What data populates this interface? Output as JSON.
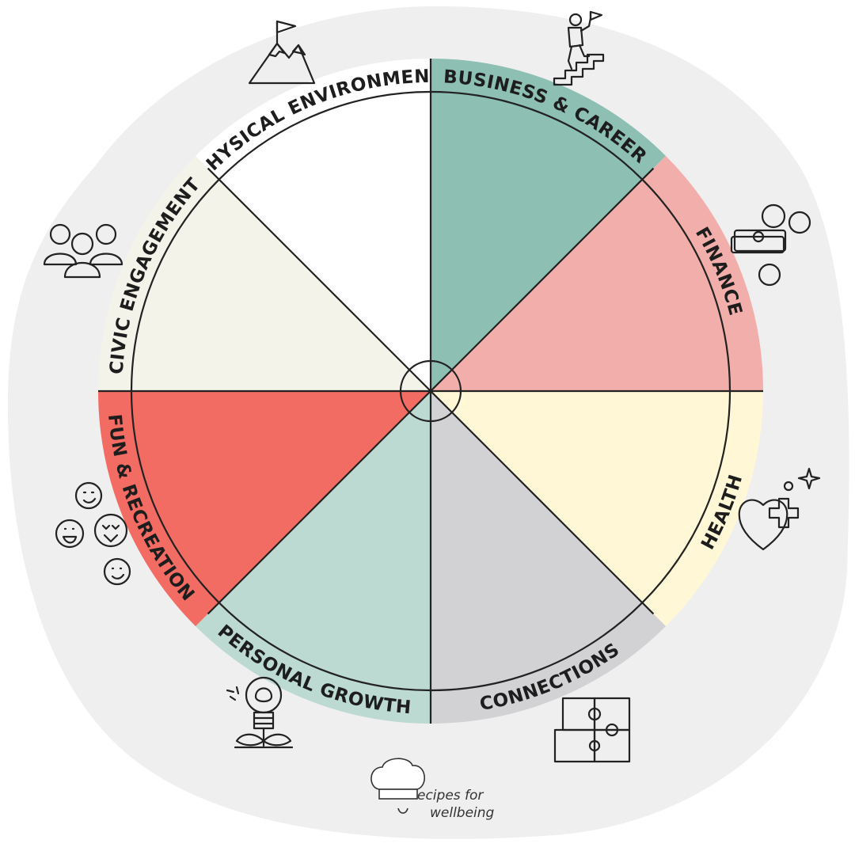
{
  "wheel": {
    "segments": [
      {
        "id": "business-career",
        "label": "BUSINESS & CAREER",
        "color": "#8dbfb3",
        "icon": "climbing-stairs-icon"
      },
      {
        "id": "finance",
        "label": "FINANCE",
        "color": "#f2aeaa",
        "icon": "money-coins-icon"
      },
      {
        "id": "health",
        "label": "HEALTH",
        "color": "#fff7d6",
        "icon": "heart-plus-icon"
      },
      {
        "id": "connections",
        "label": "CONNECTIONS",
        "color": "#d2d1d4",
        "icon": "puzzle-pieces-icon"
      },
      {
        "id": "personal-growth",
        "label": "PERSONAL GROWTH",
        "color": "#bcd9d2",
        "icon": "lightbulb-plant-icon"
      },
      {
        "id": "fun-recreation",
        "label": "FUN & RECREATION",
        "color": "#f26c63",
        "icon": "smiley-faces-icon"
      },
      {
        "id": "civic-engagement",
        "label": "CIVIC ENGAGEMENT",
        "color": "#f3f3ea",
        "icon": "people-group-icon"
      },
      {
        "id": "physical-environment",
        "label": "PHYSICAL ENVIRONMENT",
        "color": "#ffffff",
        "icon": "mountain-flag-icon"
      }
    ]
  },
  "logo": {
    "line1": "ecipes for",
    "line2": "wellbeing",
    "icon": "chef-hat-icon"
  },
  "colors": {
    "background_blob": "#efefef",
    "ink": "#222222",
    "teal": "#8dbfb3",
    "orange": "#f2b35d",
    "red": "#f26c63",
    "gray": "#a89f9f"
  }
}
